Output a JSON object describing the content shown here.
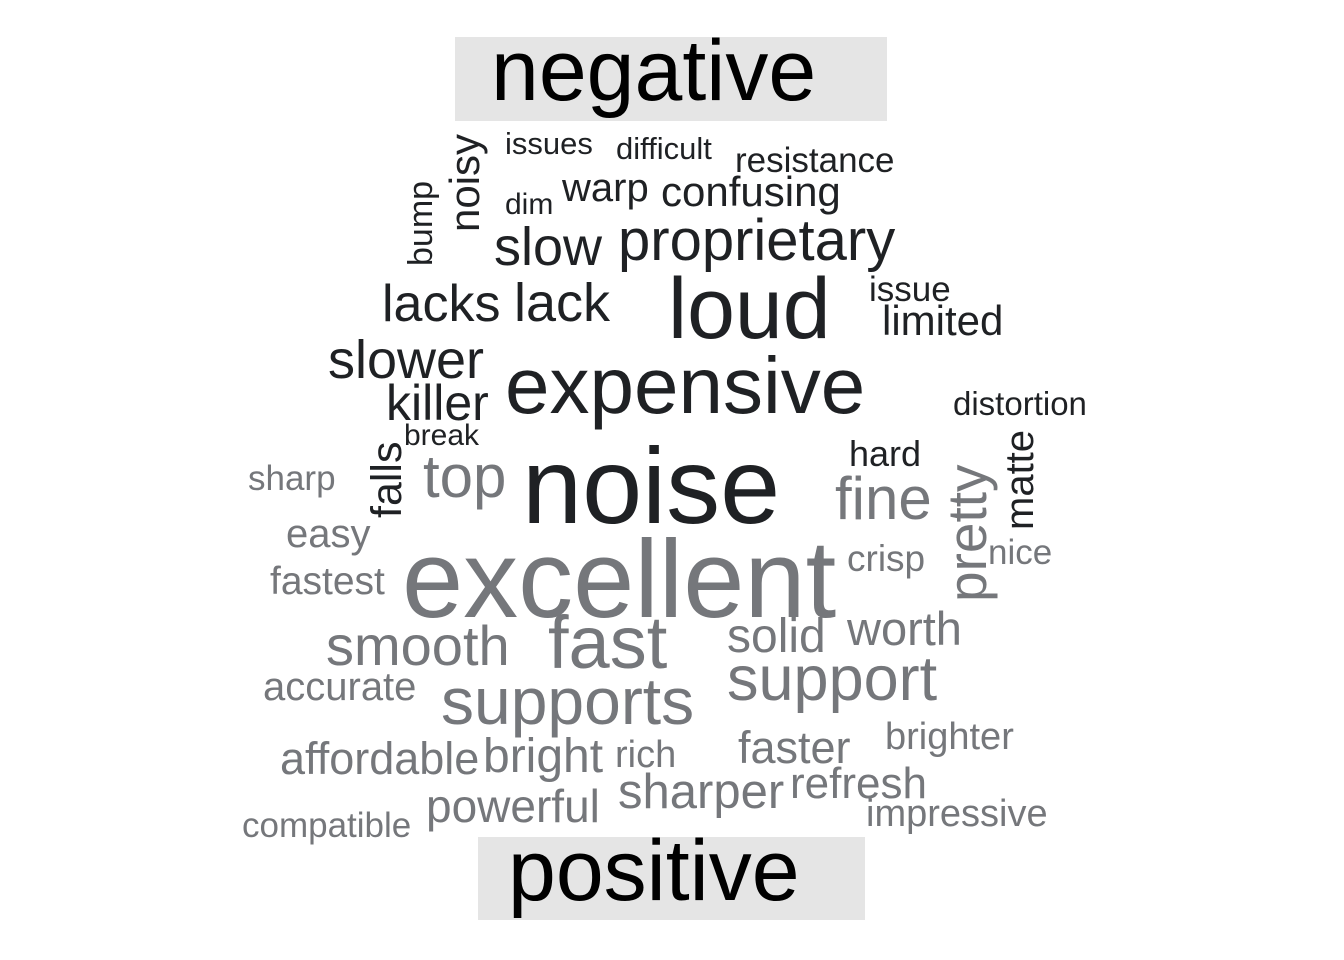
{
  "colors": {
    "negative": "#1f2124",
    "positive": "#75777b",
    "label_box": "#e5e5e5",
    "label_text": "#000000"
  },
  "sections": {
    "negative_label": "negative",
    "positive_label": "positive"
  },
  "words": [
    {
      "id": "issues",
      "text": "issues",
      "group": "negative"
    },
    {
      "id": "difficult",
      "text": "difficult",
      "group": "negative"
    },
    {
      "id": "resistance",
      "text": "resistance",
      "group": "negative"
    },
    {
      "id": "noisy",
      "text": "noisy",
      "group": "negative"
    },
    {
      "id": "bump",
      "text": "bump",
      "group": "negative"
    },
    {
      "id": "dim",
      "text": "dim",
      "group": "negative"
    },
    {
      "id": "warp",
      "text": "warp",
      "group": "negative"
    },
    {
      "id": "confusing",
      "text": "confusing",
      "group": "negative"
    },
    {
      "id": "slow",
      "text": "slow",
      "group": "negative"
    },
    {
      "id": "proprietary",
      "text": "proprietary",
      "group": "negative"
    },
    {
      "id": "lacks",
      "text": "lacks",
      "group": "negative"
    },
    {
      "id": "lack",
      "text": "lack",
      "group": "negative"
    },
    {
      "id": "loud",
      "text": "loud",
      "group": "negative"
    },
    {
      "id": "issue",
      "text": "issue",
      "group": "negative"
    },
    {
      "id": "limited",
      "text": "limited",
      "group": "negative"
    },
    {
      "id": "slower",
      "text": "slower",
      "group": "negative"
    },
    {
      "id": "expensive",
      "text": "expensive",
      "group": "negative"
    },
    {
      "id": "killer",
      "text": "killer",
      "group": "negative"
    },
    {
      "id": "distortion",
      "text": "distortion",
      "group": "negative"
    },
    {
      "id": "break",
      "text": "break",
      "group": "negative"
    },
    {
      "id": "falls",
      "text": "falls",
      "group": "negative"
    },
    {
      "id": "hard",
      "text": "hard",
      "group": "negative"
    },
    {
      "id": "noise",
      "text": "noise",
      "group": "negative"
    },
    {
      "id": "matte",
      "text": "matte",
      "group": "negative"
    },
    {
      "id": "sharp",
      "text": "sharp",
      "group": "positive"
    },
    {
      "id": "top",
      "text": "top",
      "group": "positive"
    },
    {
      "id": "fine",
      "text": "fine",
      "group": "positive"
    },
    {
      "id": "pretty",
      "text": "pretty",
      "group": "positive"
    },
    {
      "id": "easy",
      "text": "easy",
      "group": "positive"
    },
    {
      "id": "crisp",
      "text": "crisp",
      "group": "positive"
    },
    {
      "id": "nice",
      "text": "nice",
      "group": "positive"
    },
    {
      "id": "fastest",
      "text": "fastest",
      "group": "positive"
    },
    {
      "id": "excellent",
      "text": "excellent",
      "group": "positive"
    },
    {
      "id": "smooth",
      "text": "smooth",
      "group": "positive"
    },
    {
      "id": "fast",
      "text": "fast",
      "group": "positive"
    },
    {
      "id": "solid",
      "text": "solid",
      "group": "positive"
    },
    {
      "id": "worth",
      "text": "worth",
      "group": "positive"
    },
    {
      "id": "accurate",
      "text": "accurate",
      "group": "positive"
    },
    {
      "id": "supports",
      "text": "supports",
      "group": "positive"
    },
    {
      "id": "support",
      "text": "support",
      "group": "positive"
    },
    {
      "id": "brighter",
      "text": "brighter",
      "group": "positive"
    },
    {
      "id": "affordable",
      "text": "affordable",
      "group": "positive"
    },
    {
      "id": "bright",
      "text": "bright",
      "group": "positive"
    },
    {
      "id": "rich",
      "text": "rich",
      "group": "positive"
    },
    {
      "id": "faster",
      "text": "faster",
      "group": "positive"
    },
    {
      "id": "sharper",
      "text": "sharper",
      "group": "positive"
    },
    {
      "id": "refresh",
      "text": "refresh",
      "group": "positive"
    },
    {
      "id": "powerful",
      "text": "powerful",
      "group": "positive"
    },
    {
      "id": "compatible",
      "text": "compatible",
      "group": "positive"
    },
    {
      "id": "impressive",
      "text": "impressive",
      "group": "positive"
    }
  ]
}
